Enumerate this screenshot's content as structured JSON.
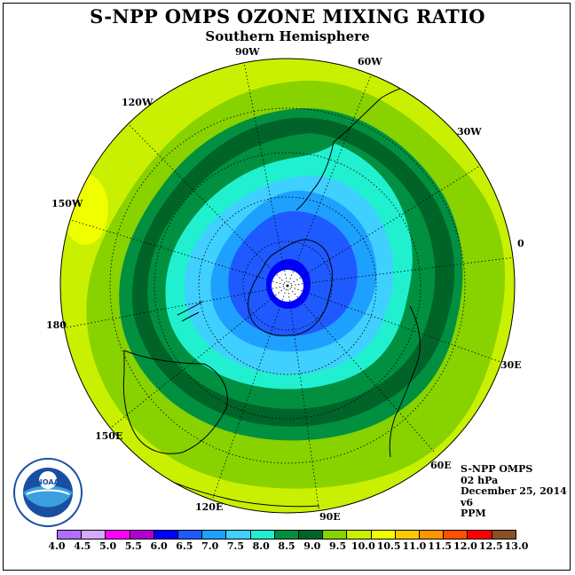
{
  "title": "S-NPP OMPS OZONE MIXING RATIO",
  "subtitle": "Southern Hemisphere",
  "longitude_labels": {
    "lon_0": "0",
    "lon_30w": "30W",
    "lon_60w": "60W",
    "lon_90w": "90W",
    "lon_120w": "120W",
    "lon_150w": "150W",
    "lon_180": "180",
    "lon_150e": "150E",
    "lon_120e": "120E",
    "lon_90e": "90E",
    "lon_60e": "60E",
    "lon_30e": "30E"
  },
  "info": {
    "instrument": "S-NPP OMPS",
    "level": "02 hPa",
    "date": "December 25, 2014",
    "version": "v6",
    "units": "PPM"
  },
  "logo_text": "NOAA",
  "colorbar": {
    "ticks": [
      "4.0",
      "4.5",
      "5.0",
      "5.5",
      "6.0",
      "6.5",
      "7.0",
      "7.5",
      "8.0",
      "8.5",
      "9.0",
      "9.5",
      "10.0",
      "10.5",
      "11.0",
      "11.5",
      "12.0",
      "12.5",
      "13.0"
    ],
    "colors": [
      "#b070ff",
      "#d7a8ff",
      "#ff00ff",
      "#b000d0",
      "#0000ff",
      "#1e5aff",
      "#1ea0ff",
      "#3fd0ff",
      "#20f0d0",
      "#009040",
      "#006428",
      "#88d200",
      "#c8f000",
      "#f0ff00",
      "#ffc800",
      "#ff9600",
      "#ff5000",
      "#ff0000",
      "#8c5028"
    ]
  },
  "contour_levels": {
    "outer_bg": "#c8f000",
    "band_95": "#88d200",
    "band_85": "#009040",
    "band_90": "#006428",
    "band_80": "#20f0d0",
    "band_75": "#3fd0ff",
    "band_70": "#1ea0ff",
    "band_65": "#1e5aff",
    "band_60": "#0000ff",
    "high_spot": "#f0ff00"
  }
}
